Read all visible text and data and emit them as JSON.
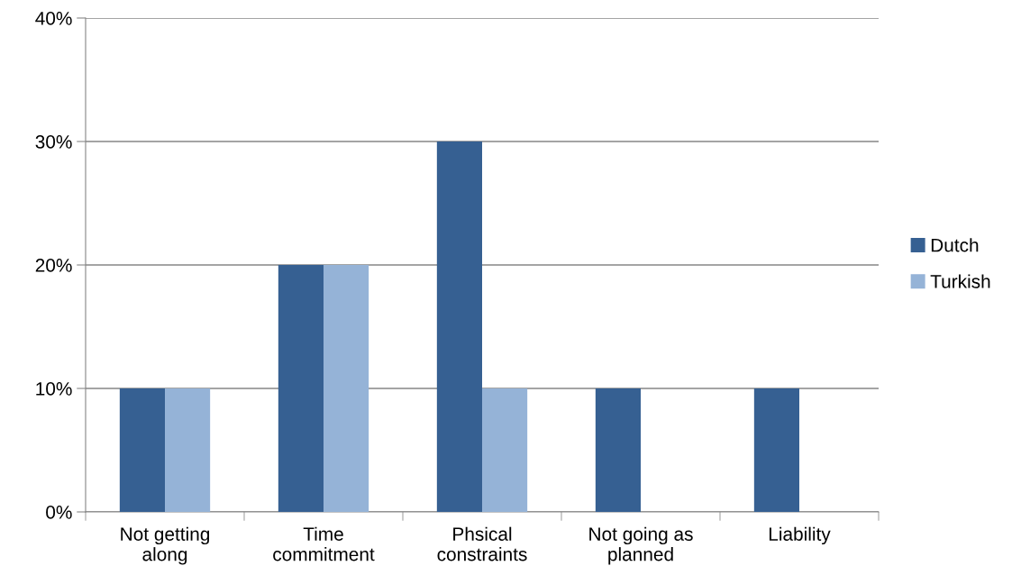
{
  "chart_data": {
    "type": "bar",
    "categories": [
      "Not getting\nalong",
      "Time\ncommitment",
      "Phsical\nconstraints",
      "Not going as\nplanned",
      "Liability"
    ],
    "series": [
      {
        "name": "Dutch",
        "color": "#366092",
        "values": [
          10,
          20,
          30,
          10,
          10
        ]
      },
      {
        "name": "Turkish",
        "color": "#95b3d7",
        "values": [
          10,
          20,
          10,
          0,
          0
        ]
      }
    ],
    "ylim": [
      0,
      40
    ],
    "yticks": [
      {
        "value": 0,
        "label": "0%"
      },
      {
        "value": 10,
        "label": "10%"
      },
      {
        "value": 20,
        "label": "20%"
      },
      {
        "value": 30,
        "label": "30%"
      },
      {
        "value": 40,
        "label": "40%"
      }
    ],
    "grid": "y",
    "legend": "right"
  }
}
